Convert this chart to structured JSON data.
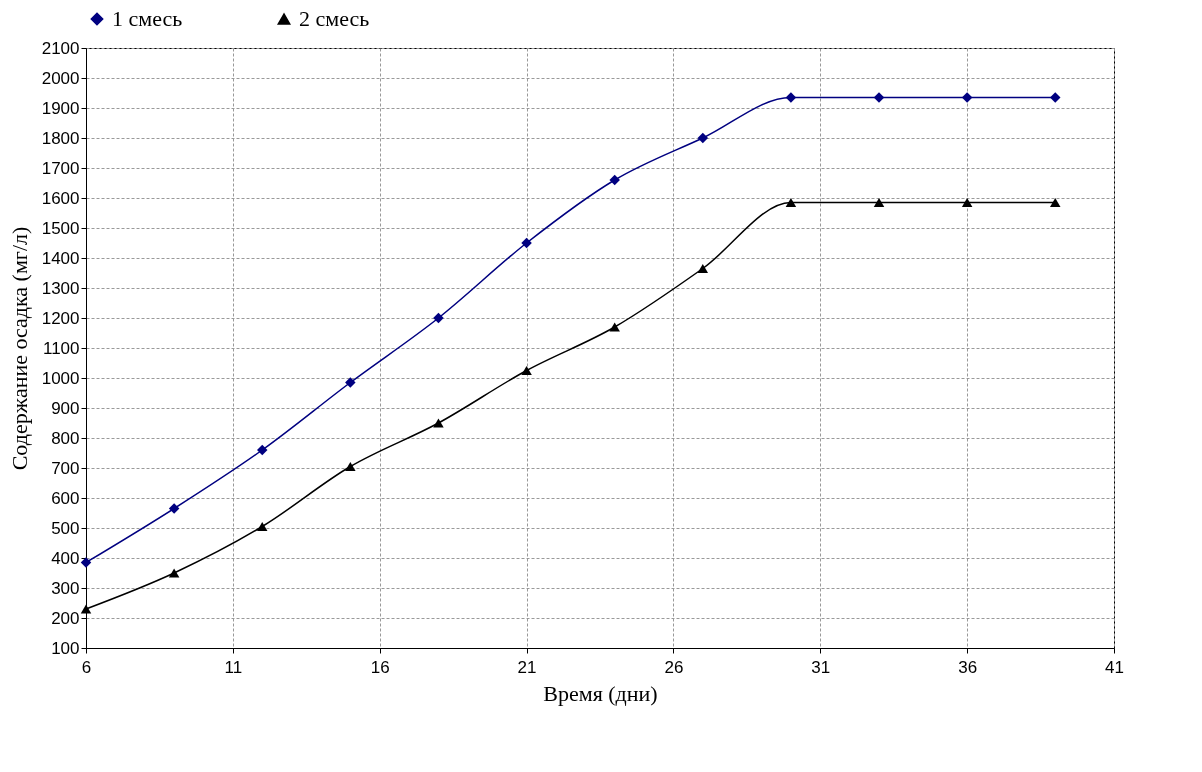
{
  "chart_data": {
    "type": "line",
    "xlabel": "Время (дни)",
    "ylabel": "Содержание осадка (мг/л)",
    "x": [
      6,
      9,
      12,
      15,
      18,
      21,
      24,
      27,
      30,
      33,
      36,
      39
    ],
    "series": [
      {
        "name": "1 смесь",
        "color": "#000080",
        "marker": "diamond",
        "values": [
          385,
          565,
          760,
          985,
          1200,
          1450,
          1660,
          1800,
          1935,
          1935,
          1935,
          1935
        ]
      },
      {
        "name": "2 смесь",
        "color": "#000000",
        "marker": "triangle",
        "values": [
          230,
          350,
          505,
          705,
          850,
          1025,
          1170,
          1365,
          1585,
          1585,
          1585,
          1585
        ]
      }
    ],
    "xlim": [
      6,
      41
    ],
    "xticks": [
      6,
      11,
      16,
      21,
      26,
      31,
      36,
      41
    ],
    "ylim": [
      100,
      2100
    ],
    "yticks": [
      100,
      200,
      300,
      400,
      500,
      600,
      700,
      800,
      900,
      1000,
      1100,
      1200,
      1300,
      1400,
      1500,
      1600,
      1700,
      1800,
      1900,
      2000,
      2100
    ],
    "grid": true,
    "legend": "top",
    "line_style": "solid"
  }
}
